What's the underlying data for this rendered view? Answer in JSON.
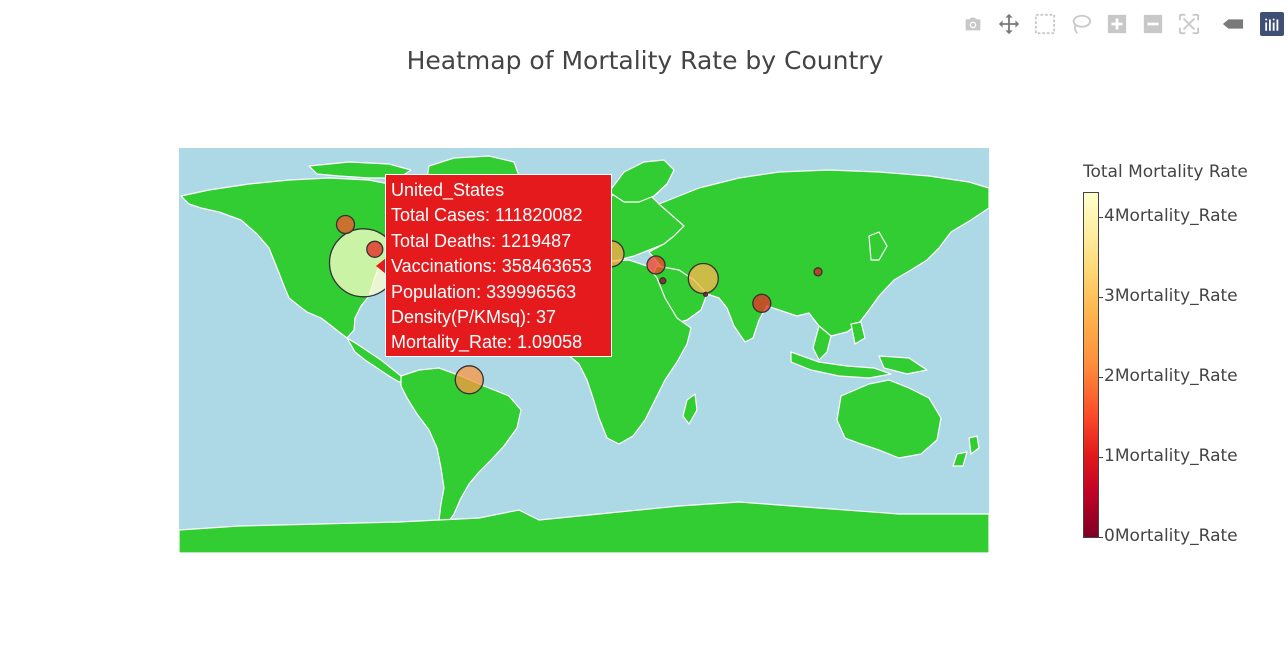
{
  "title": "Heatmap of Mortality Rate by Country",
  "modebar": {
    "icons": [
      "camera-icon",
      "pan-icon",
      "box-select-icon",
      "lasso-select-icon",
      "zoom-in-icon",
      "zoom-out-icon",
      "reset-view-icon",
      "hover-toggle-icon",
      "plotly-logo-icon"
    ]
  },
  "colors": {
    "ocean": "#add8e6",
    "land": "#32cd32",
    "coastline": "#ffffff",
    "tooltip_bg": "#e41a1c"
  },
  "colorbar": {
    "title": "Total Mortality Rate",
    "ticks": [
      {
        "label": "4Mortality_Rate",
        "value": 4
      },
      {
        "label": "3Mortality_Rate",
        "value": 3
      },
      {
        "label": "2Mortality_Rate",
        "value": 2
      },
      {
        "label": "1Mortality_Rate",
        "value": 1
      },
      {
        "label": "0Mortality_Rate",
        "value": 0
      }
    ],
    "range": [
      0,
      4.3
    ],
    "colorscale": "YlOrRd"
  },
  "chart_data": {
    "type": "scatter",
    "projection": "equirectangular",
    "points": [
      {
        "lon": -98,
        "lat": 39,
        "size": 34,
        "rate": 4.3
      },
      {
        "lon": -106,
        "lat": 56,
        "size": 9,
        "rate": 1.6
      },
      {
        "lon": -93,
        "lat": 45,
        "size": 8,
        "rate": 1.09
      },
      {
        "lon": -51,
        "lat": -13,
        "size": 14,
        "rate": 2.3
      },
      {
        "lon": 12,
        "lat": 43,
        "size": 13,
        "rate": 2.6
      },
      {
        "lon": 32,
        "lat": 38,
        "size": 9,
        "rate": 1.4
      },
      {
        "lon": 35,
        "lat": 31,
        "size": 3,
        "rate": 0.3
      },
      {
        "lon": 53,
        "lat": 32,
        "size": 15,
        "rate": 2.8
      },
      {
        "lon": 54,
        "lat": 25,
        "size": 2,
        "rate": 0.2
      },
      {
        "lon": 79,
        "lat": 21,
        "size": 9,
        "rate": 1.2
      },
      {
        "lon": 104,
        "lat": 35,
        "size": 4,
        "rate": 1.0
      }
    ]
  },
  "tooltip": {
    "country": "United_States",
    "total_cases": "Total Cases: 111820082",
    "total_deaths": "Total Deaths: 1219487",
    "vaccinations": "Vaccinations: 358463653",
    "population": "Population: 339996563",
    "density": "Density(P/KMsq): 37",
    "mortality_rate": "Mortality_Rate: 1.09058"
  }
}
